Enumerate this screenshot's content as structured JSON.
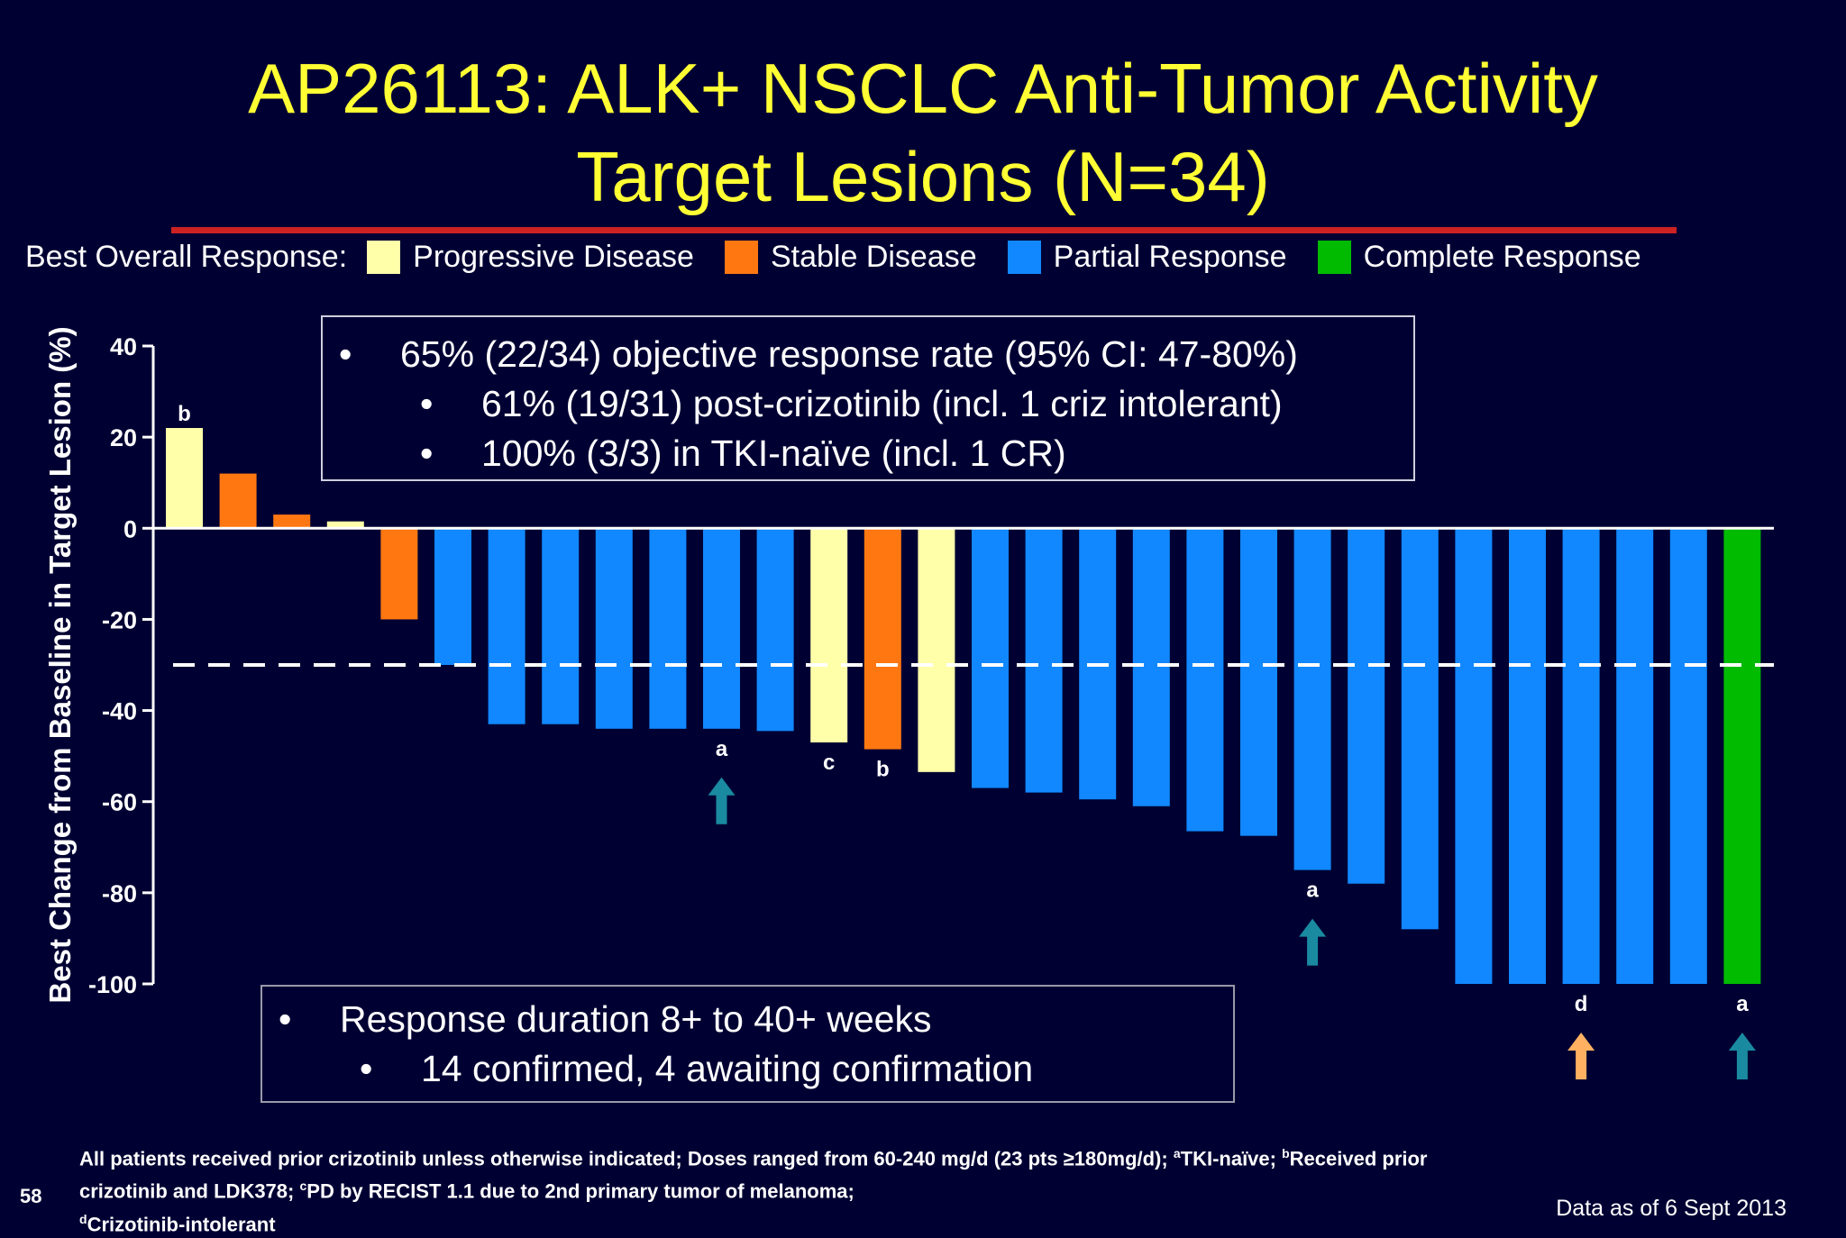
{
  "title_line1": "AP26113: ALK+ NSCLC Anti-Tumor Activity",
  "title_line2": "Target Lesions (N=34)",
  "legend": {
    "label": "Best Overall Response:",
    "items": [
      {
        "name": "Progressive Disease",
        "color": "#ffffaa"
      },
      {
        "name": "Stable  Disease",
        "color": "#ff7711"
      },
      {
        "name": "Partial Response",
        "color": "#1188ff"
      },
      {
        "name": "Complete  Response",
        "color": "#00bb00"
      }
    ]
  },
  "box1": {
    "line1": "65% (22/34) objective response rate (95% CI: 47-80%)",
    "line2": "61% (19/31) post-crizotinib (incl. 1 criz intolerant)",
    "line3": "100% (3/3) in TKI-naïve (incl. 1 CR)",
    "bullet": "•"
  },
  "box2": {
    "line1": "Response duration 8+ to 40+ weeks",
    "line2": "14 confirmed, 4 awaiting confirmation",
    "bullet": "•"
  },
  "chart_data": {
    "type": "bar",
    "ylabel": "Best Change from Baseline in Target Lesion (%)",
    "ylim": [
      -100,
      40
    ],
    "yticks": [
      40,
      20,
      0,
      -20,
      -40,
      -60,
      -80,
      -100
    ],
    "ytick_labels": [
      "40",
      "20",
      "0",
      "-20",
      "-40",
      "-60",
      "-80",
      "-100"
    ],
    "threshold": -30,
    "bars": [
      {
        "value": 22,
        "response": "PD",
        "label": "b"
      },
      {
        "value": 12,
        "response": "SD"
      },
      {
        "value": 3,
        "response": "SD"
      },
      {
        "value": 1.5,
        "response": "PD"
      },
      {
        "value": -20,
        "response": "SD"
      },
      {
        "value": -30,
        "response": "PR"
      },
      {
        "value": -43,
        "response": "PR"
      },
      {
        "value": -43,
        "response": "PR"
      },
      {
        "value": -44,
        "response": "PR"
      },
      {
        "value": -44,
        "response": "PR"
      },
      {
        "value": -44,
        "response": "PR",
        "label": "a",
        "arrow": "teal"
      },
      {
        "value": -44.5,
        "response": "PR"
      },
      {
        "value": -47,
        "response": "PD",
        "label": "c"
      },
      {
        "value": -48.5,
        "response": "SD",
        "label": "b"
      },
      {
        "value": -53.5,
        "response": "PD"
      },
      {
        "value": -57,
        "response": "PR"
      },
      {
        "value": -58,
        "response": "PR"
      },
      {
        "value": -59.5,
        "response": "PR"
      },
      {
        "value": -61,
        "response": "PR"
      },
      {
        "value": -66.5,
        "response": "PR"
      },
      {
        "value": -67.5,
        "response": "PR"
      },
      {
        "value": -75,
        "response": "PR",
        "label": "a",
        "arrow": "teal"
      },
      {
        "value": -78,
        "response": "PR"
      },
      {
        "value": -88,
        "response": "PR"
      },
      {
        "value": -100,
        "response": "PR"
      },
      {
        "value": -100,
        "response": "PR"
      },
      {
        "value": -100,
        "response": "PR",
        "label": "d",
        "arrow": "orange"
      },
      {
        "value": -100,
        "response": "PR"
      },
      {
        "value": -100,
        "response": "PR"
      },
      {
        "value": -100,
        "response": "CR",
        "label": "a",
        "arrow": "teal"
      }
    ],
    "colors": {
      "PD": "#ffffaa",
      "SD": "#ff7711",
      "PR": "#1188ff",
      "CR": "#00bb00",
      "arrow_teal": "#1a8aa0",
      "arrow_orange": "#ffb060"
    }
  },
  "footnote": {
    "line1_a": "All patients received prior crizotinib unless otherwise indicated; Doses ranged from 60-240 mg/d (23 pts  ≥180mg/d); ",
    "sup_a": "a",
    "line1_b": "TKI-naïve; ",
    "sup_b": "b",
    "line1_c": "Received prior",
    "line2_a": "crizotinib and LDK378; ",
    "sup_c": "c",
    "line2_b": "PD by RECIST 1.1 due to 2nd primary tumor of melanoma;",
    "sup_d": "d",
    "line3": "Crizotinib-intolerant"
  },
  "page_number": "58",
  "data_as_of": "Data as of 6 Sept 2013"
}
